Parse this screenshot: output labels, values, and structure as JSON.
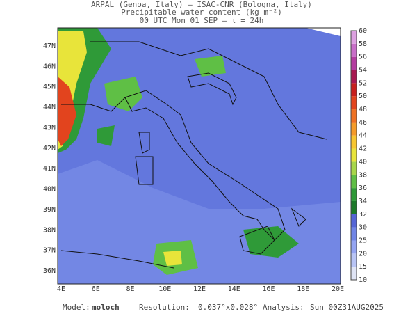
{
  "header": {
    "lines": [
      "ARPAL (Genoa, Italy)  –  ISAC-CNR (Bologna, Italy)",
      "Precipitable water content (kg m⁻²)",
      "00 UTC Mon 01 SEP  –  τ = 24h"
    ]
  },
  "map": {
    "lon_labels": [
      "4E",
      "6E",
      "8E",
      "10E",
      "12E",
      "14E",
      "16E",
      "18E",
      "20E"
    ],
    "lat_labels": [
      "47N",
      "46N",
      "45N",
      "44N",
      "43N",
      "42N",
      "41N",
      "40N",
      "39N",
      "38N",
      "37N",
      "36N"
    ]
  },
  "colorbar": {
    "labels": [
      10,
      15,
      20,
      25,
      30,
      32,
      34,
      36,
      38,
      40,
      42,
      44,
      46,
      48,
      50,
      52,
      54,
      56,
      58,
      60
    ],
    "colors": [
      "#dfe4f5",
      "#b8c4f5",
      "#94a4f2",
      "#7085e6",
      "#5565d6",
      "#1d7a2a",
      "#2f9a38",
      "#5fbf45",
      "#a7d64a",
      "#e8e43a",
      "#f7c630",
      "#f59b2a",
      "#ee7123",
      "#e2441e",
      "#c8201e",
      "#a81850",
      "#b43ca0",
      "#c86ec8",
      "#dca0e0"
    ]
  },
  "footer": {
    "model_label": "Model:",
    "model": "moloch",
    "resolution_label": "Resolution:",
    "resolution": "0.037°x0.028°",
    "analysis_label": "Analysis:",
    "analysis": "Sun 00Z31AUG2025"
  }
}
